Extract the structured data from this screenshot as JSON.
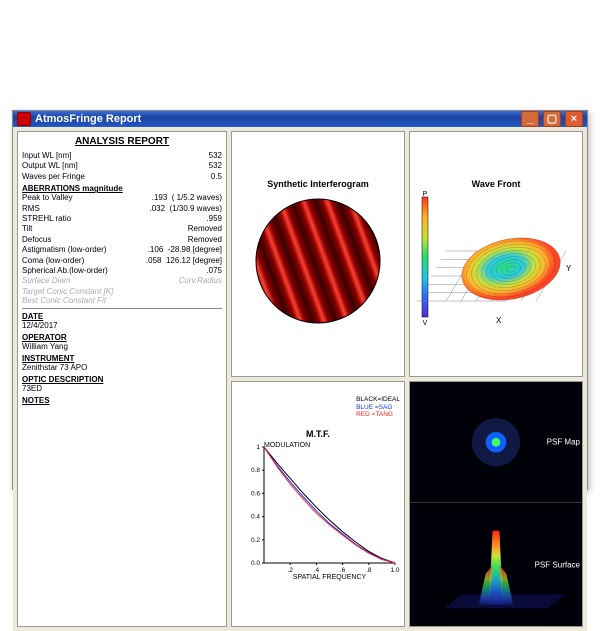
{
  "window": {
    "title": "AtmosFringe  Report"
  },
  "report": {
    "title": "ANALYSIS  REPORT",
    "inputs": {
      "input_wl_label": "Input WL [nm]",
      "input_wl": "532",
      "output_wl_label": "Output WL [nm]",
      "output_wl": "532",
      "wpf_label": "Waves per Fringe",
      "wpf": "0.5"
    },
    "aberr_header": "ABERRATIONS magnitude",
    "aberr": {
      "pv_label": "Peak to Valley",
      "pv_val": ".193",
      "pv_note": "( 1/5.2 waves)",
      "rms_label": "RMS",
      "rms_val": ".032",
      "rms_note": "(1/30.9 waves)",
      "strehl_label": "STREHL ratio",
      "strehl_val": ".959",
      "tilt_label": "Tilt",
      "tilt_val": "Removed",
      "defocus_label": "Defocus",
      "defocus_val": "Removed",
      "astig_label": "Astigmatism  (low-order)",
      "astig_val": ".106",
      "astig_ang": "-28.98  [degree]",
      "coma_label": "Coma           (low-order)",
      "coma_val": ".058",
      "coma_ang": "126.12  [degree]",
      "sph_label": "Spherical Ab.(low-order)",
      "sph_val": ".075"
    },
    "greyed": {
      "g1": "Surface Diam",
      "g1r": "Curv.Radius",
      "g2": "Target Conic Constant [K]",
      "g3": "Best Conic Constant Fit"
    },
    "fields": {
      "date_l": "DATE",
      "date_v": "12/4/2017",
      "op_l": "OPERATOR",
      "op_v": "William Yang",
      "inst_l": "INSTRUMENT",
      "inst_v": "Zenithstar 73 APO",
      "optic_l": "OPTIC DESCRIPTION",
      "optic_v": "73ED",
      "notes_l": "NOTES"
    }
  },
  "plots": {
    "interferogram": {
      "title": "Synthetic Interferogram",
      "bg": "#000000",
      "fringe_colors": [
        "#3a0000",
        "#8a0000",
        "#d01010",
        "#ff4030",
        "#ff8060"
      ]
    },
    "wavefront": {
      "title": "Wave Front",
      "axis_labels": {
        "p": "P",
        "v": "V",
        "x": "X",
        "y": "Y"
      },
      "colormap": [
        "#5b2bd8",
        "#2b6bff",
        "#1ec8e0",
        "#20e070",
        "#c8e030",
        "#ffb020",
        "#ff3a1a"
      ]
    },
    "mtf": {
      "title": "M.T.F.",
      "ylabel": "MODULATION",
      "xlabel": "SPATIAL FREQUENCY",
      "legend": {
        "black": "BLACK=IDEAL",
        "blue": "BLUE   =SAG",
        "red": "RED    =TANG"
      },
      "colors": {
        "ideal": "#000000",
        "sag": "#1030ff",
        "tang": "#ff2020",
        "axis": "#000000",
        "grid": "#cccccc"
      },
      "xticks": [
        ".2",
        ".4",
        ".6",
        ".8",
        "1.0"
      ],
      "yticks": [
        "0.0",
        "0.2",
        "0.4",
        "0.6",
        "0.8",
        "1"
      ],
      "ideal": [
        [
          0,
          1
        ],
        [
          0.1,
          0.86
        ],
        [
          0.2,
          0.73
        ],
        [
          0.3,
          0.6
        ],
        [
          0.4,
          0.48
        ],
        [
          0.5,
          0.37
        ],
        [
          0.6,
          0.27
        ],
        [
          0.7,
          0.18
        ],
        [
          0.8,
          0.1
        ],
        [
          0.9,
          0.04
        ],
        [
          1.0,
          0.0
        ]
      ],
      "sag": [
        [
          0,
          1
        ],
        [
          0.1,
          0.84
        ],
        [
          0.2,
          0.7
        ],
        [
          0.3,
          0.57
        ],
        [
          0.4,
          0.45
        ],
        [
          0.5,
          0.34
        ],
        [
          0.6,
          0.25
        ],
        [
          0.7,
          0.16
        ],
        [
          0.8,
          0.09
        ],
        [
          0.9,
          0.035
        ],
        [
          1.0,
          0.0
        ]
      ],
      "tang": [
        [
          0,
          1
        ],
        [
          0.1,
          0.83
        ],
        [
          0.2,
          0.68
        ],
        [
          0.3,
          0.55
        ],
        [
          0.4,
          0.43
        ],
        [
          0.5,
          0.33
        ],
        [
          0.6,
          0.24
        ],
        [
          0.7,
          0.155
        ],
        [
          0.8,
          0.085
        ],
        [
          0.9,
          0.03
        ],
        [
          1.0,
          0.0
        ]
      ]
    },
    "psf_map": {
      "label": "PSF Map",
      "bg": "#000008",
      "dot_color": "#40ff60",
      "halo": "#203080"
    },
    "psf_surf": {
      "label": "PSF Surface",
      "bg": "#000008",
      "colormap": [
        "#1a1a80",
        "#2050c0",
        "#20a0c0",
        "#30e060",
        "#d0e030",
        "#ff8020",
        "#ff2a10"
      ]
    }
  }
}
